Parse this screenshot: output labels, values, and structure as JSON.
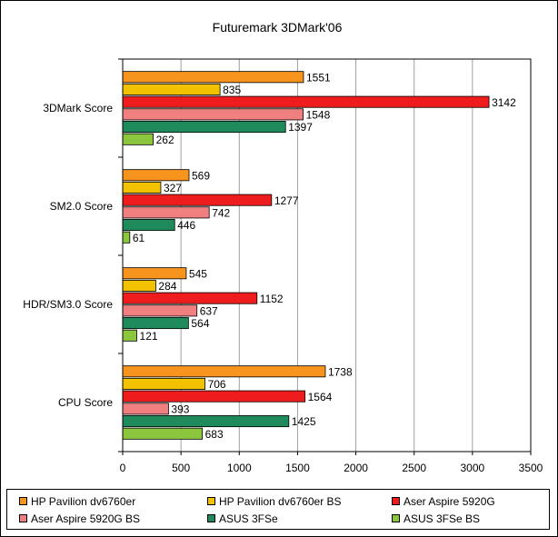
{
  "colors": {
    "series": [
      "#f7941d",
      "#f2c200",
      "#ee1c1c",
      "#f08080",
      "#1f8a5b",
      "#8cc63f"
    ],
    "background": "#ffffff",
    "plot_background": "#ffffff",
    "grid": "#a0a0a0"
  },
  "chart_data": {
    "type": "bar",
    "orientation": "horizontal",
    "title": "Futuremark 3DMark'06",
    "xlabel": "",
    "ylabel": "",
    "categories": [
      "3DMark Score",
      "SM2.0 Score",
      "HDR/SM3.0 Score",
      "CPU Score"
    ],
    "x_ticks": [
      "0",
      "500",
      "1000",
      "1500",
      "2000",
      "2500",
      "3000",
      "3500"
    ],
    "xlim": [
      0,
      3500
    ],
    "grid": true,
    "legend_position": "bottom",
    "data_labels": true,
    "series": [
      {
        "name": "HP Pavilion dv6760er",
        "values": [
          1551,
          569,
          545,
          1738
        ]
      },
      {
        "name": "HP Pavilion dv6760er BS",
        "values": [
          835,
          327,
          284,
          706
        ]
      },
      {
        "name": "Aser Aspire 5920G",
        "values": [
          3142,
          1277,
          1152,
          1564
        ]
      },
      {
        "name": "Aser Aspire 5920G BS",
        "values": [
          1548,
          742,
          637,
          393
        ]
      },
      {
        "name": "ASUS 3FSe",
        "values": [
          1397,
          446,
          564,
          1425
        ]
      },
      {
        "name": "ASUS 3FSe BS",
        "values": [
          262,
          61,
          121,
          683
        ]
      }
    ]
  }
}
